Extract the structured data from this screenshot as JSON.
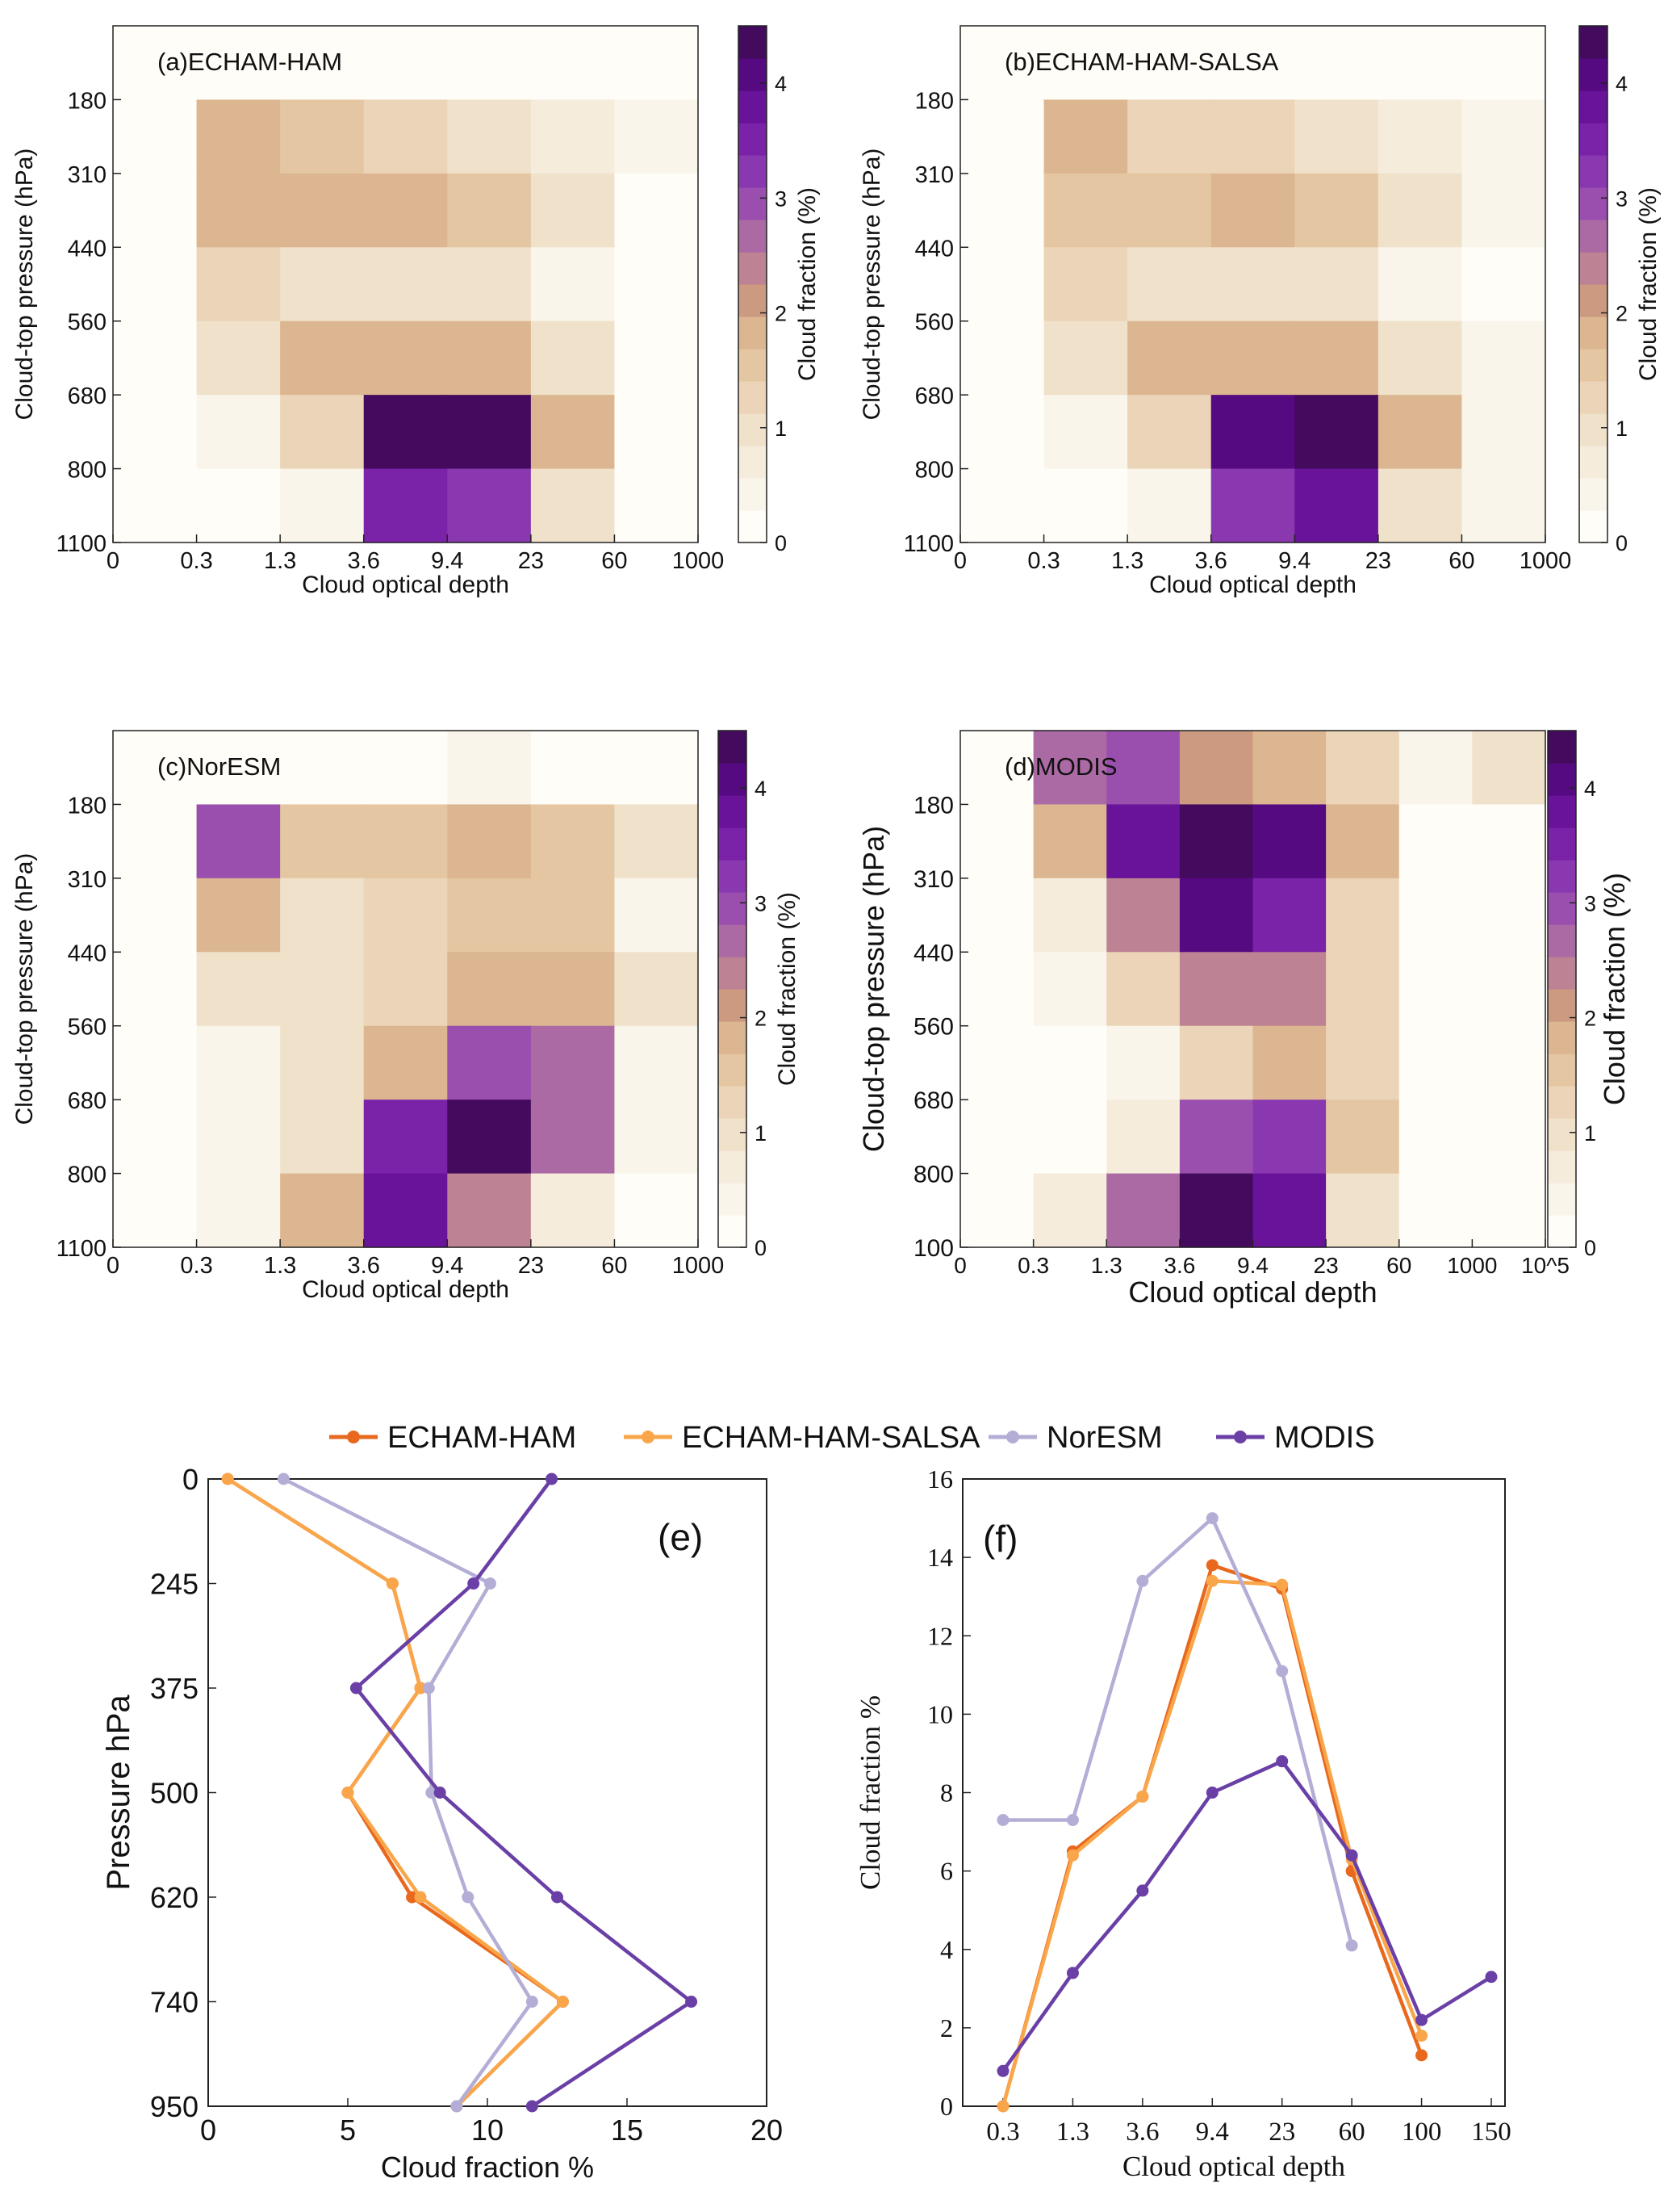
{
  "colors": {
    "echam_ham": "#e8681e",
    "echam_ham_salsa": "#f9a64a",
    "noresm": "#b4aed6",
    "modis": "#6a3fa6"
  },
  "colorbar": {
    "label": "Cloud fraction (%)",
    "ticks": [
      "0",
      "1",
      "2",
      "3",
      "4"
    ],
    "max": 4.5,
    "steps": [
      "#fffdf8",
      "#faf5ea",
      "#f5ecdc",
      "#f0e1cb",
      "#ebd4b7",
      "#e4c6a2",
      "#dcb690",
      "#cc9a80",
      "#bd8293",
      "#ab6aa4",
      "#9a4fae",
      "#8a38b0",
      "#7a22a8",
      "#681399",
      "#560a82",
      "#440a5e"
    ]
  },
  "chart_data": [
    {
      "id": "a",
      "type": "heatmap",
      "title": "(a)ECHAM-HAM",
      "xlabel": "Cloud optical depth",
      "ylabel": "Cloud-top pressure (hPa)",
      "x_ticks": [
        "0",
        "0.3",
        "1.3",
        "3.6",
        "9.4",
        "23",
        "60",
        "1000"
      ],
      "y_ticks": [
        "180",
        "310",
        "440",
        "560",
        "680",
        "800",
        "1100"
      ],
      "values": [
        [
          0.05,
          0.05,
          0.05,
          0.05,
          0.05,
          0.05,
          0.2
        ],
        [
          0.05,
          1.8,
          1.6,
          1.2,
          0.9,
          0.6,
          0.3
        ],
        [
          0.05,
          1.7,
          1.7,
          1.9,
          1.6,
          0.9,
          0.1
        ],
        [
          0.05,
          1.2,
          0.9,
          0.9,
          0.9,
          0.5,
          0.1
        ],
        [
          0.05,
          1.0,
          1.7,
          1.8,
          1.8,
          0.9,
          0.1
        ],
        [
          0.05,
          0.3,
          1.3,
          4.5,
          4.5,
          1.9,
          0.1
        ],
        [
          0.05,
          0.1,
          0.5,
          3.6,
          3.2,
          1.0,
          0.1
        ]
      ]
    },
    {
      "id": "b",
      "type": "heatmap",
      "title": "(b)ECHAM-HAM-SALSA",
      "xlabel": "Cloud optical depth",
      "ylabel": "Cloud-top pressure (hPa)",
      "x_ticks": [
        "0",
        "0.3",
        "1.3",
        "3.6",
        "9.4",
        "23",
        "60",
        "1000"
      ],
      "y_ticks": [
        "180",
        "310",
        "440",
        "560",
        "680",
        "800",
        "1100"
      ],
      "values": [
        [
          0.05,
          0.05,
          0.05,
          0.05,
          0.05,
          0.05,
          0.05
        ],
        [
          0.05,
          1.7,
          1.3,
          1.3,
          0.9,
          0.6,
          0.3
        ],
        [
          0.05,
          1.6,
          1.6,
          1.8,
          1.6,
          0.9,
          0.3
        ],
        [
          0.05,
          1.2,
          0.9,
          0.9,
          0.9,
          0.5,
          0.1
        ],
        [
          0.05,
          1.0,
          1.7,
          1.8,
          1.8,
          0.9,
          0.3
        ],
        [
          0.05,
          0.3,
          1.3,
          4.2,
          4.5,
          1.9,
          0.3
        ],
        [
          0.05,
          0.1,
          0.5,
          3.3,
          3.7,
          1.0,
          0.3
        ]
      ]
    },
    {
      "id": "c",
      "type": "heatmap",
      "title": "(c)NorESM",
      "xlabel": "Cloud optical depth",
      "ylabel": "Cloud-top pressure (hPa)",
      "x_ticks": [
        "0",
        "0.3",
        "1.3",
        "3.6",
        "9.4",
        "23",
        "60",
        "1000"
      ],
      "y_ticks": [
        "180",
        "310",
        "440",
        "560",
        "680",
        "800",
        "1100"
      ],
      "values": [
        [
          0.05,
          0.05,
          0.2,
          0.2,
          0.5,
          0.2,
          0.2
        ],
        [
          0.05,
          3.0,
          1.6,
          1.6,
          1.8,
          1.5,
          0.9
        ],
        [
          0.05,
          1.7,
          0.9,
          1.2,
          1.6,
          1.6,
          0.5
        ],
        [
          0.05,
          1.0,
          0.9,
          1.2,
          1.8,
          1.8,
          0.9
        ],
        [
          0.05,
          0.5,
          0.9,
          1.8,
          2.9,
          2.6,
          0.5
        ],
        [
          0.05,
          0.3,
          0.9,
          3.5,
          4.3,
          2.6,
          0.3
        ],
        [
          0.05,
          0.3,
          1.7,
          3.8,
          2.5,
          0.6,
          0.1
        ]
      ]
    },
    {
      "id": "d",
      "type": "heatmap",
      "title": "(d)MODIS",
      "xlabel": "Cloud optical depth",
      "ylabel": "Cloud-top pressure (hPa)",
      "x_ticks": [
        "0",
        "0.3",
        "1.3",
        "3.6",
        "9.4",
        "23",
        "60",
        "1000",
        "10^5"
      ],
      "y_ticks": [
        "180",
        "310",
        "440",
        "560",
        "680",
        "800",
        "100"
      ],
      "values": [
        [
          0.05,
          2.6,
          3.0,
          2.1,
          1.8,
          1.2,
          0.3,
          0.9
        ],
        [
          0.05,
          1.8,
          3.9,
          4.5,
          4.2,
          1.8,
          0.1,
          0.2
        ],
        [
          0.05,
          0.6,
          2.3,
          4.0,
          3.6,
          1.4,
          0.1,
          0.2
        ],
        [
          0.05,
          0.3,
          1.3,
          2.5,
          2.5,
          1.2,
          0.1,
          0.2
        ],
        [
          0.05,
          0.05,
          0.3,
          1.3,
          1.8,
          1.2,
          0.1,
          0.2
        ],
        [
          0.05,
          0.1,
          0.8,
          3.0,
          3.3,
          1.6,
          0.1,
          0.2
        ],
        [
          0.05,
          0.8,
          2.7,
          4.5,
          3.8,
          0.9,
          0.1,
          0.1
        ]
      ]
    },
    {
      "id": "e",
      "type": "line",
      "panel_label": "(e)",
      "xlabel": "Cloud fraction %",
      "ylabel": "Pressure hPa",
      "xlim": [
        0,
        20
      ],
      "x_ticks": [
        "0",
        "5",
        "10",
        "15",
        "20"
      ],
      "y_ticks": [
        "0",
        "245",
        "375",
        "500",
        "620",
        "740",
        "950"
      ],
      "series": [
        {
          "name": "ECHAM-HAM",
          "x": [
            0.7,
            6.6,
            7.6,
            5.0,
            7.3,
            12.7,
            8.9
          ]
        },
        {
          "name": "ECHAM-HAM-SALSA",
          "x": [
            0.7,
            6.6,
            7.6,
            5.0,
            7.6,
            12.7,
            8.9
          ]
        },
        {
          "name": "NorESM",
          "x": [
            2.7,
            10.1,
            7.9,
            8.0,
            9.3,
            11.6,
            8.9
          ]
        },
        {
          "name": "MODIS",
          "x": [
            12.3,
            9.5,
            5.3,
            8.3,
            12.5,
            17.3,
            11.6
          ]
        }
      ]
    },
    {
      "id": "f",
      "type": "line",
      "panel_label": "(f)",
      "xlabel": "Cloud optical depth",
      "ylabel": "Cloud fraction %",
      "ylim": [
        0,
        16
      ],
      "x_ticks": [
        "0.3",
        "1.3",
        "3.6",
        "9.4",
        "23",
        "60",
        "100",
        "150"
      ],
      "y_ticks": [
        "0",
        "2",
        "4",
        "6",
        "8",
        "10",
        "12",
        "14",
        "16"
      ],
      "series": [
        {
          "name": "ECHAM-HAM",
          "y": [
            0.0,
            6.5,
            7.9,
            13.8,
            13.2,
            6.0,
            1.3,
            null
          ]
        },
        {
          "name": "ECHAM-HAM-SALSA",
          "y": [
            0.0,
            6.4,
            7.9,
            13.4,
            13.3,
            6.3,
            1.8,
            null
          ]
        },
        {
          "name": "NorESM",
          "y": [
            7.3,
            7.3,
            13.4,
            15.0,
            11.1,
            4.1,
            null,
            null
          ]
        },
        {
          "name": "MODIS",
          "y": [
            0.9,
            3.4,
            5.5,
            8.0,
            8.8,
            6.4,
            2.2,
            3.3
          ]
        }
      ]
    }
  ],
  "legend": [
    "ECHAM-HAM",
    "ECHAM-HAM-SALSA",
    "NorESM",
    "MODIS"
  ]
}
